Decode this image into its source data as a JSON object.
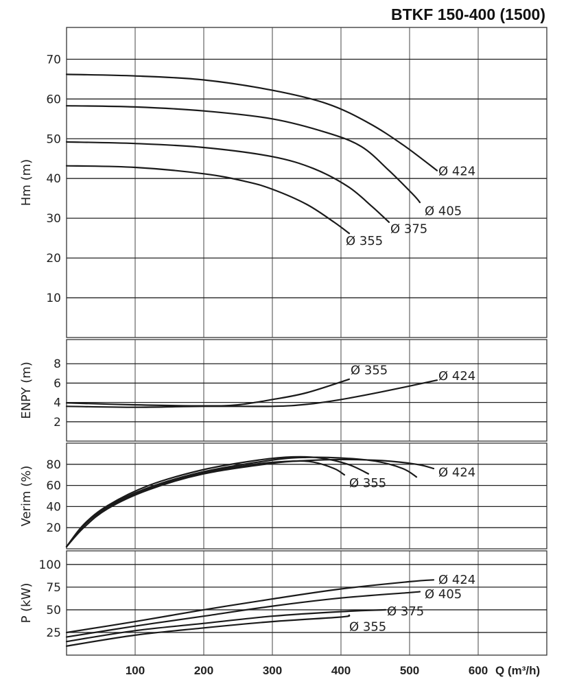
{
  "title": "BTKF 150-400 (1500)",
  "chart_data": [
    {
      "id": "head",
      "type": "line",
      "ylabel": "Hm (m)",
      "xlim": [
        0,
        725
      ],
      "ylim": [
        0,
        78
      ],
      "yticks": [
        10,
        20,
        30,
        40,
        50,
        60,
        70
      ],
      "grid": true,
      "series": [
        {
          "name": "Ø 424",
          "points": [
            [
              0,
              66.2
            ],
            [
              100,
              65.8
            ],
            [
              200,
              64.8
            ],
            [
              300,
              62.2
            ],
            [
              380,
              58.8
            ],
            [
              440,
              54
            ],
            [
              490,
              48.5
            ],
            [
              540,
              42
            ]
          ],
          "label_at": [
            540,
            42
          ]
        },
        {
          "name": "Ø 405",
          "points": [
            [
              0,
              58.3
            ],
            [
              100,
              58
            ],
            [
              200,
              57
            ],
            [
              300,
              55
            ],
            [
              380,
              51.5
            ],
            [
              430,
              48
            ],
            [
              470,
              42
            ],
            [
              505,
              36
            ],
            [
              515,
              34
            ]
          ],
          "label_at": [
            520,
            32
          ]
        },
        {
          "name": "Ø 375",
          "points": [
            [
              0,
              49.2
            ],
            [
              100,
              48.8
            ],
            [
              200,
              47.8
            ],
            [
              300,
              45.5
            ],
            [
              360,
              42.5
            ],
            [
              410,
              38
            ],
            [
              445,
              33
            ],
            [
              470,
              29
            ]
          ],
          "label_at": [
            470,
            27.5
          ]
        },
        {
          "name": "Ø 355",
          "points": [
            [
              0,
              43.2
            ],
            [
              100,
              42.8
            ],
            [
              200,
              41.2
            ],
            [
              260,
              39.3
            ],
            [
              300,
              37.3
            ],
            [
              350,
              33.5
            ],
            [
              390,
              29
            ],
            [
              412,
              26.2
            ]
          ],
          "label_at": [
            405,
            24.5
          ]
        }
      ]
    },
    {
      "id": "npsh",
      "type": "line",
      "ylabel": "ENPY (m)",
      "xlim": [
        0,
        725
      ],
      "ylim": [
        0,
        10.5
      ],
      "yticks": [
        2,
        4,
        6,
        8
      ],
      "grid": true,
      "series": [
        {
          "name": "Ø 355",
          "points": [
            [
              0,
              3.95
            ],
            [
              100,
              3.75
            ],
            [
              200,
              3.65
            ],
            [
              250,
              3.75
            ],
            [
              300,
              4.3
            ],
            [
              350,
              5
            ],
            [
              412,
              6.4
            ]
          ],
          "label_at": [
            412,
            7.4
          ]
        },
        {
          "name": "Ø 424",
          "points": [
            [
              0,
              3.6
            ],
            [
              100,
              3.5
            ],
            [
              200,
              3.6
            ],
            [
              300,
              3.6
            ],
            [
              350,
              3.8
            ],
            [
              400,
              4.3
            ],
            [
              460,
              5.1
            ],
            [
              540,
              6.3
            ]
          ],
          "label_at": [
            540,
            6.8
          ]
        }
      ]
    },
    {
      "id": "efficiency",
      "type": "line",
      "ylabel": "Verim (%)",
      "xlim": [
        0,
        725
      ],
      "ylim": [
        0,
        100
      ],
      "yticks": [
        20,
        40,
        60,
        80
      ],
      "grid": true,
      "series": [
        {
          "name": "Ø 424",
          "points": [
            [
              0,
              2
            ],
            [
              25,
              20
            ],
            [
              60,
              38
            ],
            [
              120,
              56
            ],
            [
              200,
              71
            ],
            [
              300,
              81
            ],
            [
              350,
              83.5
            ],
            [
              400,
              84.5
            ],
            [
              460,
              83.5
            ],
            [
              510,
              80
            ],
            [
              535,
              76
            ]
          ],
          "label_at": [
            540,
            73
          ]
        },
        {
          "name": "Ø 405",
          "points": [
            [
              0,
              2
            ],
            [
              25,
              22
            ],
            [
              60,
              40
            ],
            [
              120,
              58
            ],
            [
              200,
              73
            ],
            [
              300,
              84
            ],
            [
              350,
              86.5
            ],
            [
              400,
              86
            ],
            [
              450,
              83
            ],
            [
              490,
              76
            ],
            [
              510,
              68
            ]
          ],
          "label_at": null
        },
        {
          "name": "Ø 375",
          "points": [
            [
              0,
              2
            ],
            [
              25,
              23
            ],
            [
              60,
              41
            ],
            [
              120,
              60
            ],
            [
              200,
              75
            ],
            [
              280,
              84
            ],
            [
              330,
              87
            ],
            [
              370,
              86
            ],
            [
              410,
              80
            ],
            [
              440,
              71
            ]
          ],
          "label_at": null
        },
        {
          "name": "Ø 355",
          "points": [
            [
              0,
              2
            ],
            [
              25,
              22
            ],
            [
              60,
              39
            ],
            [
              120,
              57
            ],
            [
              200,
              72
            ],
            [
              280,
              80.5
            ],
            [
              330,
              83
            ],
            [
              360,
              82
            ],
            [
              390,
              76
            ],
            [
              405,
              70
            ]
          ],
          "label_at": [
            410,
            63
          ]
        }
      ]
    },
    {
      "id": "power",
      "type": "line",
      "ylabel": "P (kW)",
      "xlabel": "Q (m³/h)",
      "xlim": [
        0,
        725
      ],
      "ylim": [
        0,
        115
      ],
      "yticks": [
        25,
        50,
        75,
        100
      ],
      "xticks": [
        100,
        200,
        300,
        400,
        500,
        600
      ],
      "grid": true,
      "series": [
        {
          "name": "Ø 424",
          "points": [
            [
              0,
              25
            ],
            [
              100,
              37
            ],
            [
              200,
              50
            ],
            [
              300,
              62
            ],
            [
              400,
              73
            ],
            [
              500,
              81
            ],
            [
              535,
              83
            ]
          ],
          "label_at": [
            540,
            84
          ]
        },
        {
          "name": "Ø 405",
          "points": [
            [
              0,
              20
            ],
            [
              100,
              32
            ],
            [
              200,
              43
            ],
            [
              300,
              54
            ],
            [
              400,
              63
            ],
            [
              500,
              69
            ],
            [
              515,
              70
            ]
          ],
          "label_at": [
            520,
            68
          ]
        },
        {
          "name": "Ø 375",
          "points": [
            [
              0,
              15
            ],
            [
              100,
              27
            ],
            [
              200,
              35
            ],
            [
              300,
              43
            ],
            [
              400,
              48
            ],
            [
              465,
              50
            ]
          ],
          "label_at": [
            465,
            49
          ]
        },
        {
          "name": "Ø 355",
          "points": [
            [
              0,
              10
            ],
            [
              100,
              22
            ],
            [
              200,
              30
            ],
            [
              300,
              37
            ],
            [
              400,
              42
            ],
            [
              412,
              44
            ]
          ],
          "label_at": [
            410,
            32
          ]
        }
      ]
    }
  ]
}
